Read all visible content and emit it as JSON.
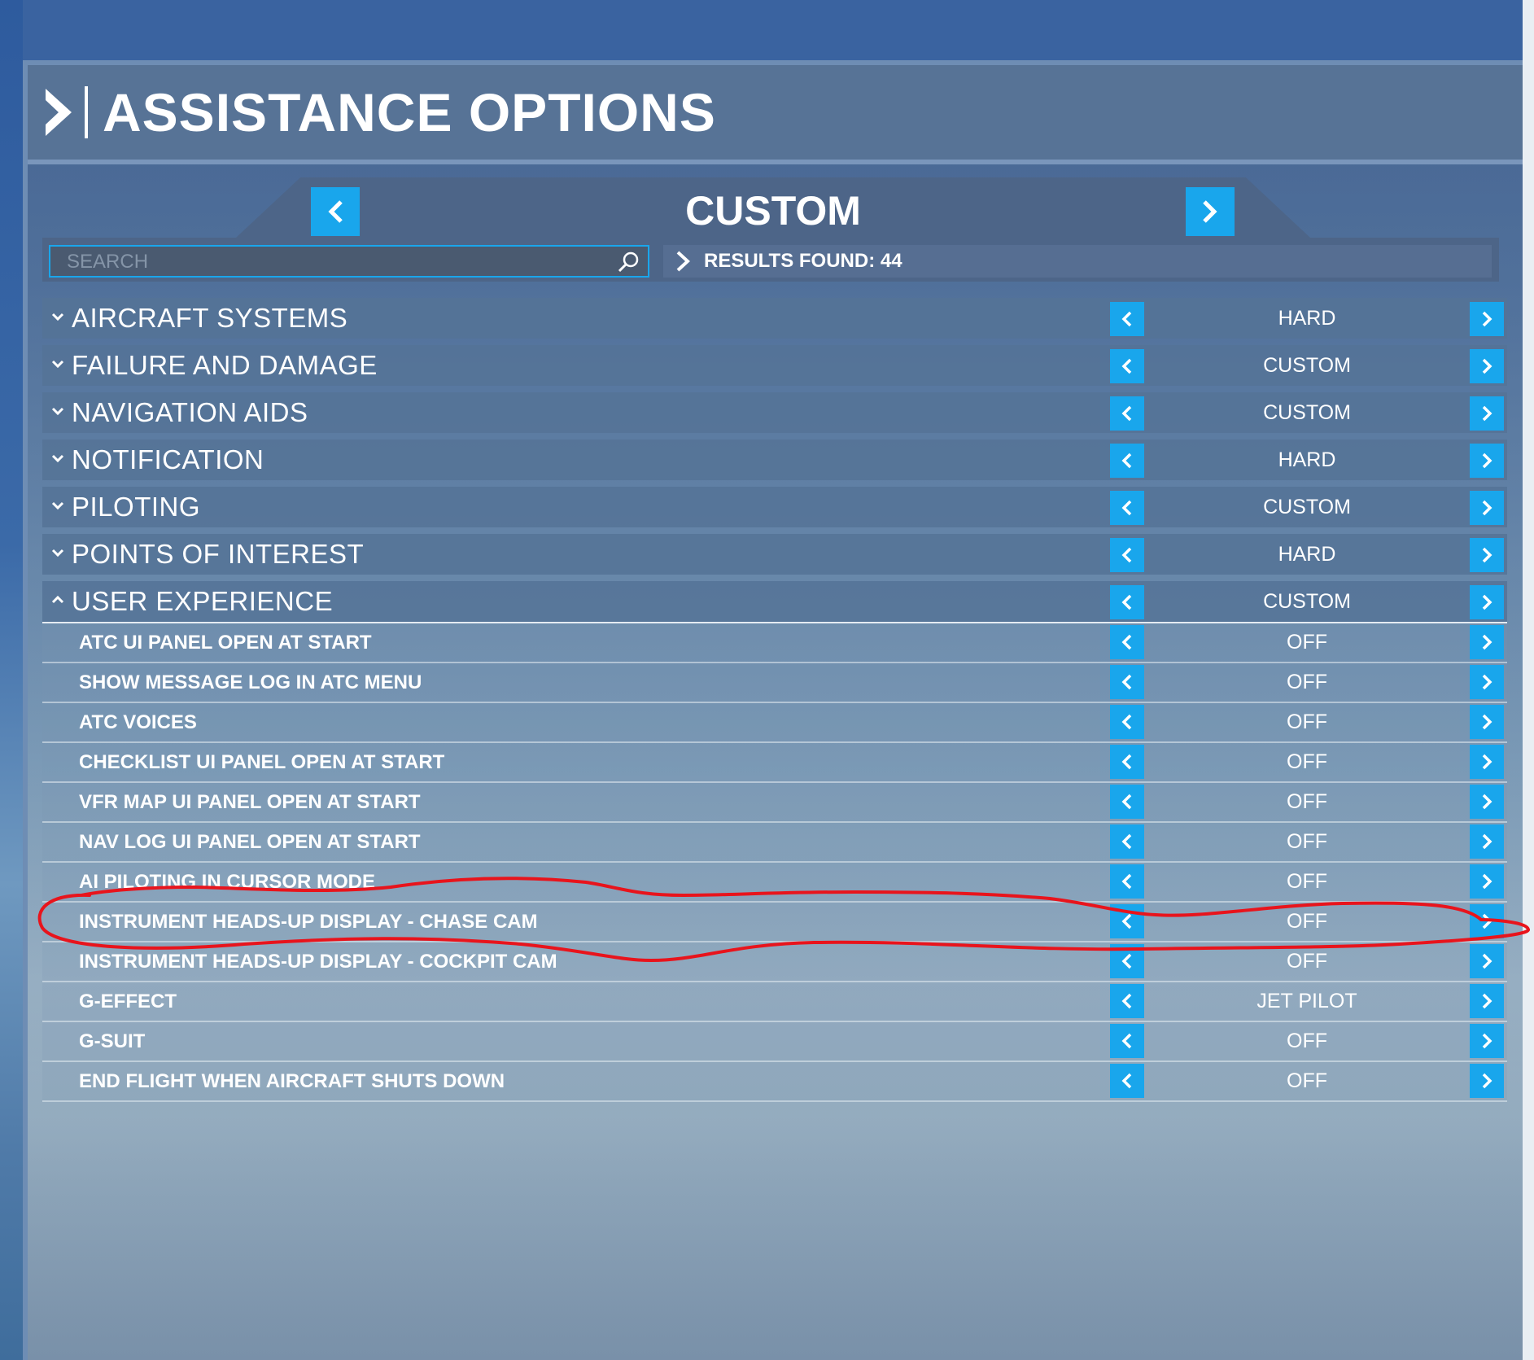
{
  "header": {
    "title": "ASSISTANCE OPTIONS"
  },
  "preset": {
    "label": "CUSTOM"
  },
  "search": {
    "placeholder": "SEARCH",
    "value": ""
  },
  "results": {
    "text": "RESULTS FOUND: 44"
  },
  "categories": [
    {
      "label": "AIRCRAFT SYSTEMS",
      "value": "HARD"
    },
    {
      "label": "FAILURE AND DAMAGE",
      "value": "CUSTOM"
    },
    {
      "label": "NAVIGATION AIDS",
      "value": "CUSTOM"
    },
    {
      "label": "NOTIFICATION",
      "value": "HARD"
    },
    {
      "label": "PILOTING",
      "value": "CUSTOM"
    },
    {
      "label": "POINTS OF INTEREST",
      "value": "HARD"
    },
    {
      "label": "USER EXPERIENCE",
      "value": "CUSTOM"
    }
  ],
  "user_experience": [
    {
      "label": "ATC UI PANEL OPEN AT START",
      "value": "OFF"
    },
    {
      "label": "SHOW MESSAGE LOG IN ATC MENU",
      "value": "OFF"
    },
    {
      "label": "ATC VOICES",
      "value": "OFF"
    },
    {
      "label": "CHECKLIST UI PANEL OPEN AT START",
      "value": "OFF"
    },
    {
      "label": "VFR MAP UI PANEL OPEN AT START",
      "value": "OFF"
    },
    {
      "label": "NAV LOG UI PANEL OPEN AT START",
      "value": "OFF"
    },
    {
      "label": "AI PILOTING IN CURSOR MODE",
      "value": "OFF"
    },
    {
      "label": "INSTRUMENT HEADS-UP DISPLAY - CHASE CAM",
      "value": "OFF"
    },
    {
      "label": "INSTRUMENT HEADS-UP DISPLAY - COCKPIT CAM",
      "value": "OFF"
    },
    {
      "label": "G-EFFECT",
      "value": "JET PILOT"
    },
    {
      "label": "G-SUIT",
      "value": "OFF"
    },
    {
      "label": "END FLIGHT WHEN AIRCRAFT SHUTS DOWN",
      "value": "OFF"
    }
  ],
  "colors": {
    "accent": "#19a6ec",
    "annotation": "#e8141c"
  },
  "icons": {
    "header": "chevron-right-icon",
    "search": "search-icon",
    "collapse": "chevron-down-icon",
    "expand": "chevron-up-icon"
  }
}
